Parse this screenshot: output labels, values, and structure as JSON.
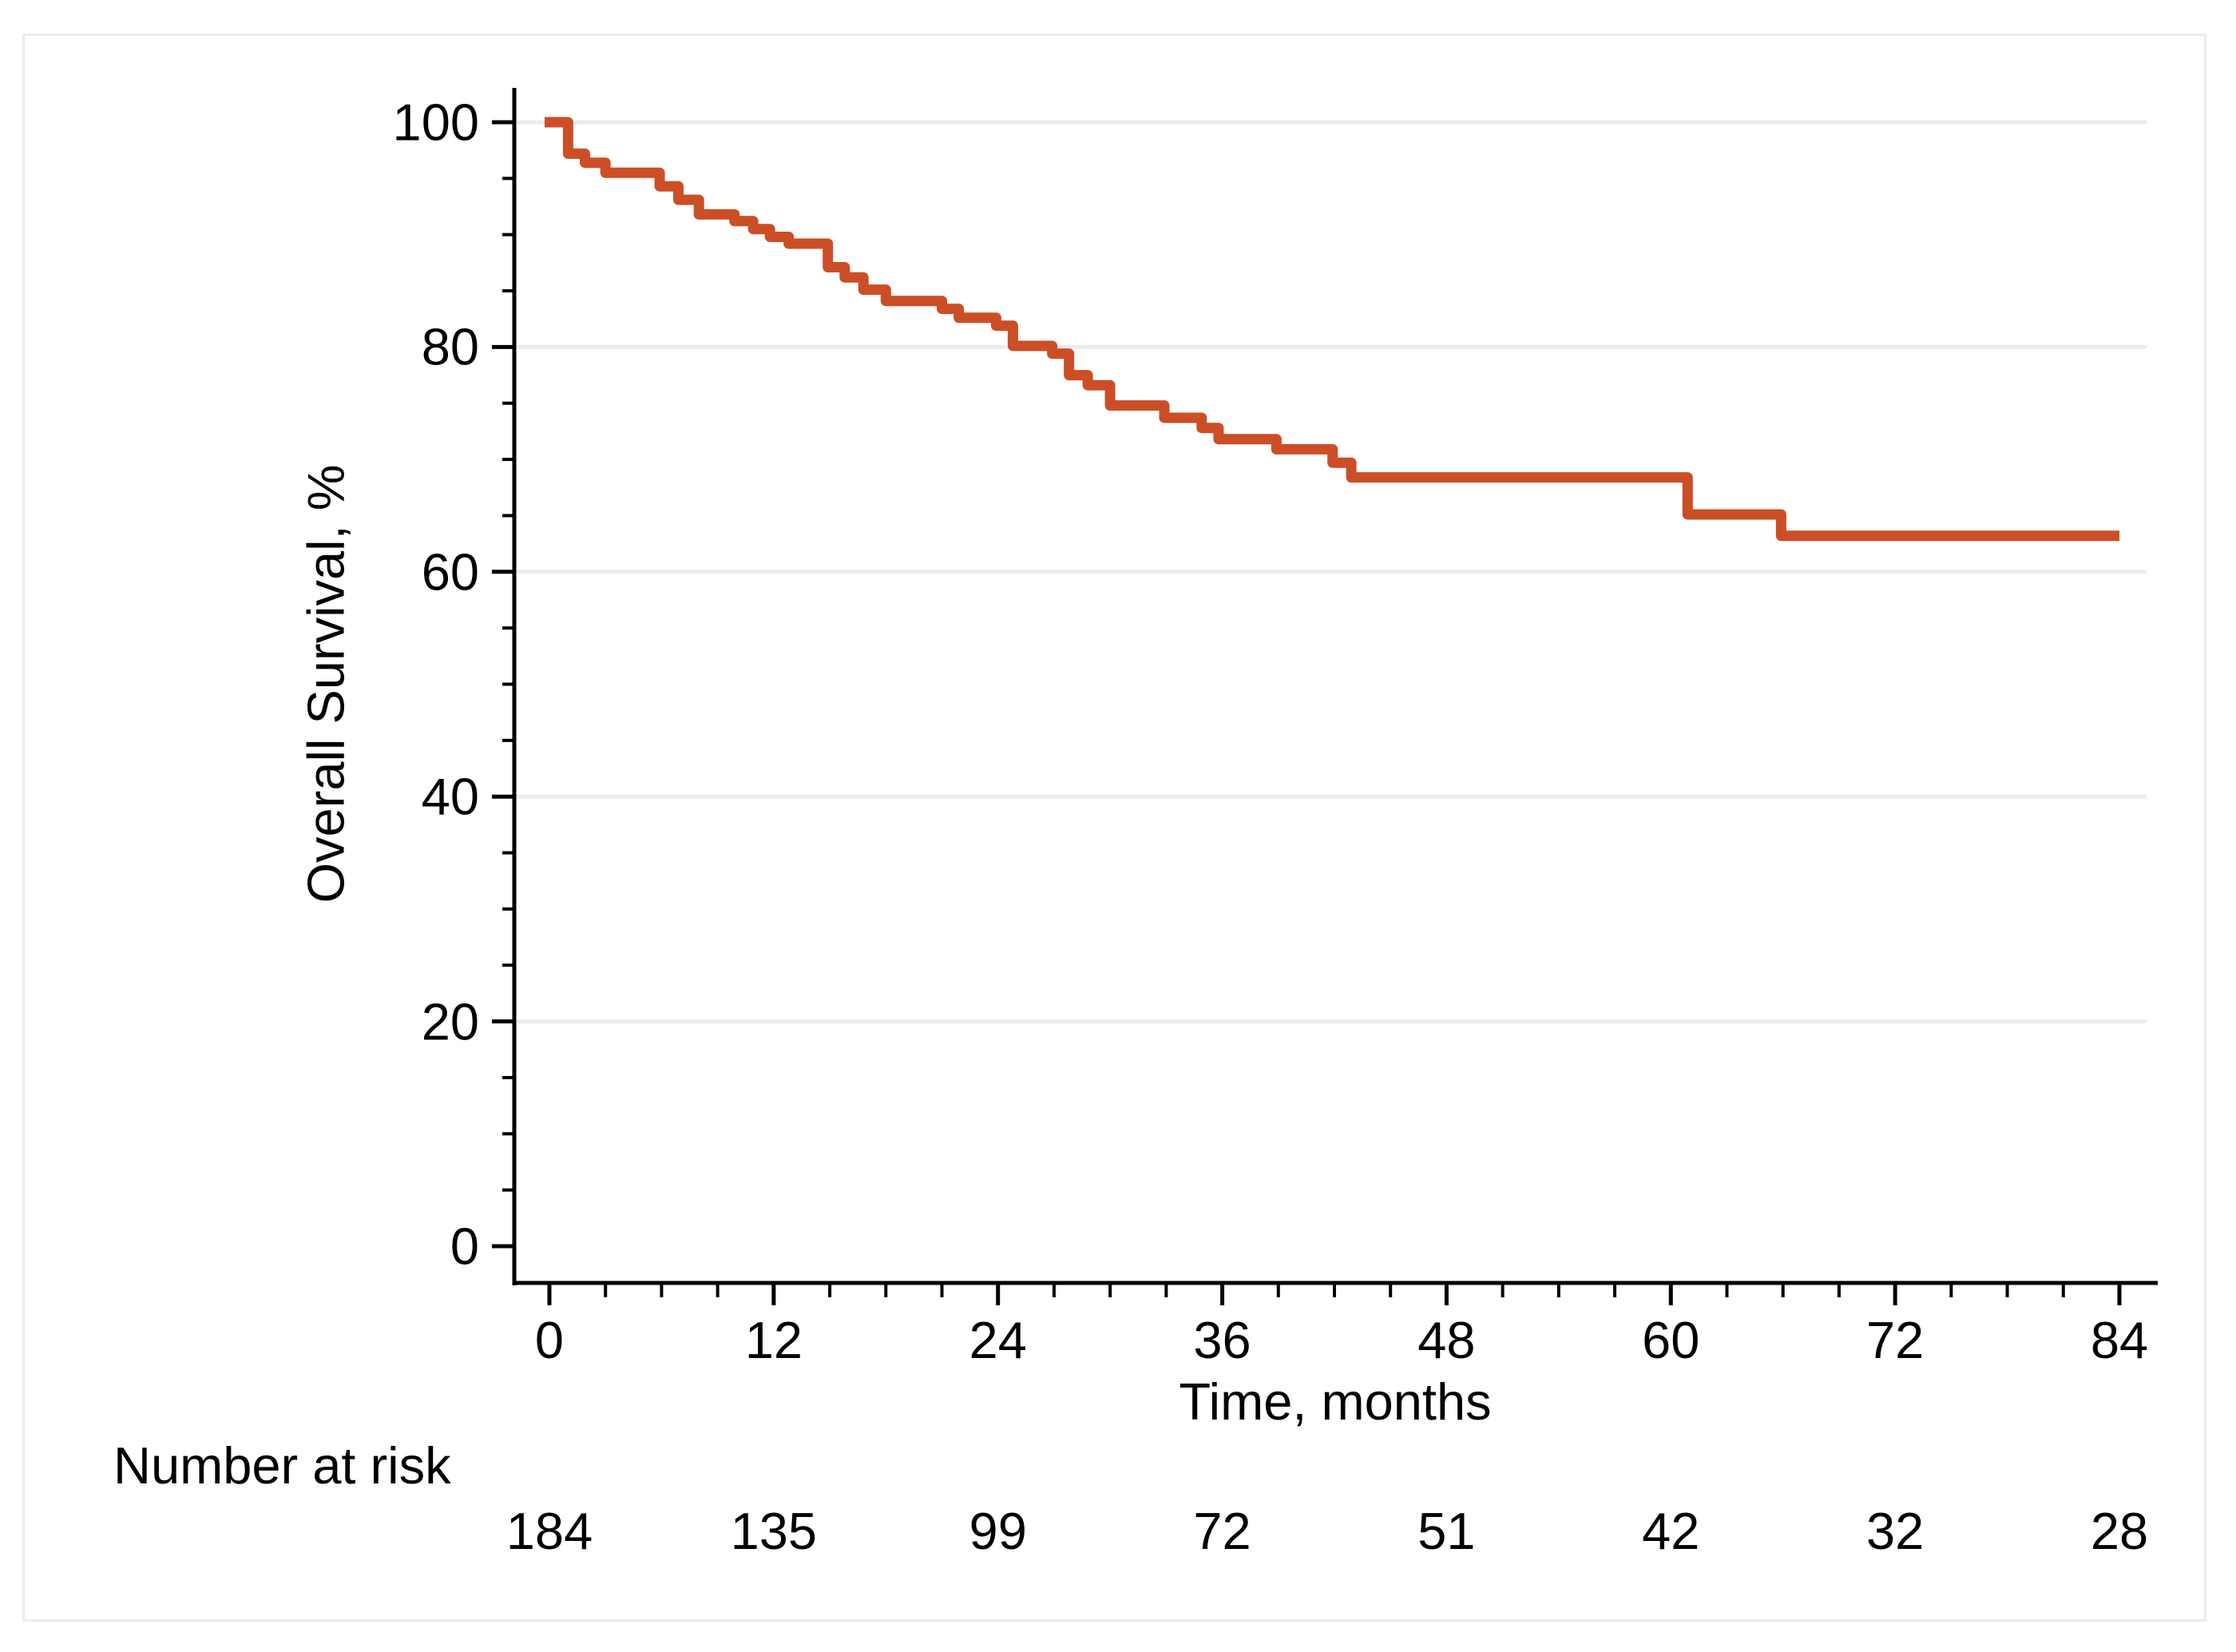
{
  "figure": {
    "kind": "kaplan-meier-survival-plot",
    "title": ""
  },
  "y_axis": {
    "title": "Overall Survival, %",
    "ticks": [
      "0",
      "20",
      "40",
      "60",
      "80",
      "100"
    ]
  },
  "x_axis": {
    "title": "Time, months",
    "ticks": [
      "0",
      "12",
      "24",
      "36",
      "48",
      "60",
      "72",
      "84"
    ]
  },
  "risk_table": {
    "label": "Number at risk",
    "values": [
      "184",
      "135",
      "99",
      "72",
      "51",
      "42",
      "32",
      "28"
    ]
  },
  "colors": {
    "curve": "#CC4E26",
    "gridline": "#E8EEF0",
    "frame": "#E8EDF0",
    "axis": "#000000",
    "text": "#000000",
    "background": "#FFFFFF"
  },
  "chart_data": {
    "type": "line",
    "subtype": "kaplan-meier-step",
    "title": "",
    "xlabel": "Time, months",
    "ylabel": "Overall Survival, %",
    "xlim": [
      0,
      84
    ],
    "ylim": [
      0,
      100
    ],
    "x_major_ticks": [
      0,
      12,
      24,
      36,
      48,
      60,
      72,
      84
    ],
    "x_minor_tick_interval": 3,
    "y_major_ticks": [
      0,
      20,
      40,
      60,
      80,
      100
    ],
    "y_minor_tick_interval": 5,
    "gridlines_at": [
      20,
      40,
      60,
      80,
      100
    ],
    "grid": true,
    "legend": false,
    "series": [
      {
        "name": "Overall survival",
        "color": "#CC4E26",
        "end_time": 84,
        "steps": [
          [
            0,
            100
          ],
          [
            1.0,
            97.2
          ],
          [
            1.9,
            96.4
          ],
          [
            3.0,
            95.5
          ],
          [
            5.9,
            94.3
          ],
          [
            6.9,
            93.1
          ],
          [
            8.0,
            91.8
          ],
          [
            9.9,
            91.2
          ],
          [
            10.9,
            90.5
          ],
          [
            11.8,
            89.8
          ],
          [
            12.8,
            89.2
          ],
          [
            14.9,
            87.1
          ],
          [
            15.8,
            86.2
          ],
          [
            16.8,
            85.1
          ],
          [
            18.0,
            84.1
          ],
          [
            21.0,
            83.4
          ],
          [
            21.9,
            82.6
          ],
          [
            23.9,
            81.9
          ],
          [
            24.8,
            80.1
          ],
          [
            26.9,
            79.4
          ],
          [
            27.8,
            77.5
          ],
          [
            28.8,
            76.6
          ],
          [
            30.0,
            74.8
          ],
          [
            32.9,
            73.7
          ],
          [
            34.9,
            72.8
          ],
          [
            35.8,
            71.8
          ],
          [
            38.9,
            70.9
          ],
          [
            41.9,
            69.7
          ],
          [
            42.9,
            68.4
          ],
          [
            60.9,
            65.1
          ],
          [
            65.9,
            63.2
          ]
        ]
      }
    ],
    "number_at_risk": {
      "label": "Number at risk",
      "times": [
        0,
        12,
        24,
        36,
        48,
        60,
        72,
        84
      ],
      "counts": [
        184,
        135,
        99,
        72,
        51,
        42,
        32,
        28
      ]
    }
  }
}
